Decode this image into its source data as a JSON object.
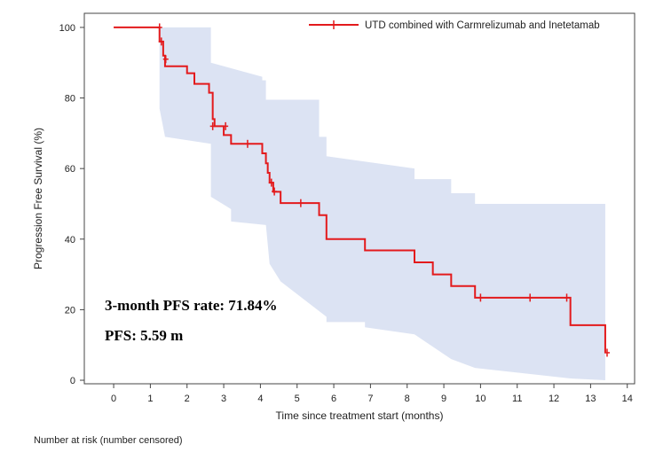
{
  "chart_data": {
    "type": "line",
    "xlabel": "Time since treatment start (months)",
    "ylabel": "Progression Free Survival (%)",
    "xlim": [
      -0.8,
      14.2
    ],
    "ylim": [
      -1,
      104
    ],
    "xticks": [
      0,
      1,
      2,
      3,
      4,
      5,
      6,
      7,
      8,
      9,
      10,
      11,
      12,
      13,
      14
    ],
    "yticks": [
      0,
      20,
      40,
      60,
      80,
      100
    ],
    "grid": false,
    "legend_position": "top-right",
    "series": [
      {
        "name": "UTD combined with Carmrelizumab and Inetetamab",
        "color": "#e31a1c",
        "step": [
          [
            0,
            100
          ],
          [
            1.25,
            100
          ],
          [
            1.25,
            96
          ],
          [
            1.35,
            96
          ],
          [
            1.35,
            92
          ],
          [
            1.4,
            92
          ],
          [
            1.4,
            89
          ],
          [
            2.0,
            89
          ],
          [
            2.0,
            87
          ],
          [
            2.2,
            87
          ],
          [
            2.2,
            84
          ],
          [
            2.6,
            84
          ],
          [
            2.6,
            81.5
          ],
          [
            2.7,
            81.5
          ],
          [
            2.7,
            74
          ],
          [
            2.75,
            74
          ],
          [
            2.75,
            72
          ],
          [
            3.0,
            72
          ],
          [
            3.0,
            69.5
          ],
          [
            3.2,
            69.5
          ],
          [
            3.2,
            67
          ],
          [
            4.05,
            67
          ],
          [
            4.05,
            64.3
          ],
          [
            4.15,
            64.3
          ],
          [
            4.15,
            61.5
          ],
          [
            4.2,
            61.5
          ],
          [
            4.2,
            58.8
          ],
          [
            4.25,
            58.8
          ],
          [
            4.25,
            56
          ],
          [
            4.35,
            56
          ],
          [
            4.35,
            53.4
          ],
          [
            4.55,
            53.4
          ],
          [
            4.55,
            50.2
          ],
          [
            5.6,
            50.2
          ],
          [
            5.6,
            46.8
          ],
          [
            5.8,
            46.8
          ],
          [
            5.8,
            40
          ],
          [
            6.85,
            40
          ],
          [
            6.85,
            36.8
          ],
          [
            8.2,
            36.8
          ],
          [
            8.2,
            33.4
          ],
          [
            8.7,
            33.4
          ],
          [
            8.7,
            30
          ],
          [
            9.2,
            30
          ],
          [
            9.2,
            26.7
          ],
          [
            9.85,
            26.7
          ],
          [
            9.85,
            23.4
          ],
          [
            12.45,
            23.4
          ],
          [
            12.45,
            15.6
          ],
          [
            13.4,
            15.6
          ],
          [
            13.4,
            7.8
          ]
        ],
        "censored": [
          [
            1.25,
            100
          ],
          [
            1.3,
            96
          ],
          [
            1.42,
            91
          ],
          [
            2.7,
            72
          ],
          [
            3.05,
            72
          ],
          [
            3.65,
            67
          ],
          [
            4.3,
            56
          ],
          [
            4.38,
            53.5
          ],
          [
            5.1,
            50.2
          ],
          [
            10.0,
            23.4
          ],
          [
            11.35,
            23.4
          ],
          [
            12.35,
            23.4
          ],
          [
            13.45,
            7.8
          ]
        ]
      }
    ],
    "confidence_band": {
      "color": "#dce3f3",
      "upper": [
        [
          1.25,
          100
        ],
        [
          2.65,
          100
        ],
        [
          2.65,
          90
        ],
        [
          4.05,
          86
        ],
        [
          4.05,
          85
        ],
        [
          4.15,
          85
        ],
        [
          4.15,
          79.5
        ],
        [
          5.6,
          79.5
        ],
        [
          5.6,
          69
        ],
        [
          5.8,
          69
        ],
        [
          5.8,
          63.5
        ],
        [
          8.2,
          60
        ],
        [
          8.2,
          57
        ],
        [
          9.2,
          57
        ],
        [
          9.2,
          53
        ],
        [
          9.85,
          53
        ],
        [
          9.85,
          50
        ],
        [
          13.4,
          50
        ]
      ],
      "lower": [
        [
          1.25,
          77
        ],
        [
          1.4,
          69
        ],
        [
          2.65,
          67
        ],
        [
          2.65,
          52
        ],
        [
          3.2,
          48.5
        ],
        [
          3.2,
          45
        ],
        [
          4.15,
          44
        ],
        [
          4.25,
          33
        ],
        [
          4.55,
          28
        ],
        [
          5.8,
          18
        ],
        [
          5.8,
          16.5
        ],
        [
          6.85,
          16.5
        ],
        [
          6.85,
          15
        ],
        [
          8.2,
          13
        ],
        [
          9.2,
          6
        ],
        [
          9.85,
          3.5
        ],
        [
          12.45,
          0.5
        ],
        [
          13.4,
          0
        ]
      ]
    },
    "annotations": [
      "3-month PFS rate: 71.84%",
      "PFS: 5.59 m"
    ]
  },
  "footer": "Number at risk (number censored)"
}
